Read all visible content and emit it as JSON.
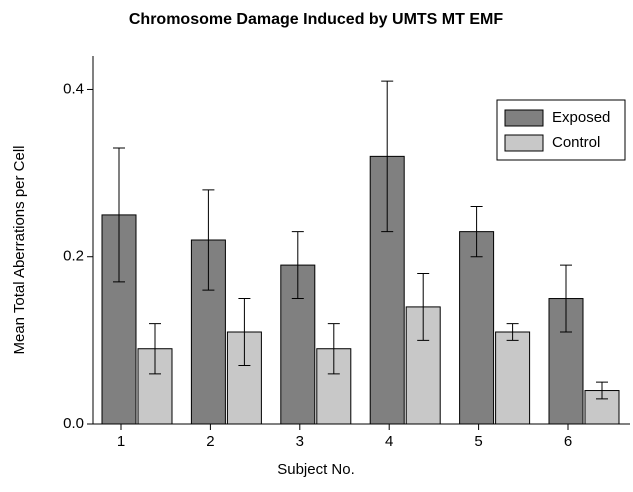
{
  "chart_data": {
    "type": "bar",
    "title": "Chromosome Damage Induced by UMTS MT EMF",
    "x_label": "Subject No.",
    "y_label": "Mean Total Aberrations per Cell",
    "categories": [
      "1",
      "2",
      "3",
      "4",
      "5",
      "6"
    ],
    "series": [
      {
        "name": "Exposed",
        "color": "#808080",
        "values": [
          0.25,
          0.22,
          0.19,
          0.32,
          0.23,
          0.15
        ],
        "errors": [
          0.08,
          0.06,
          0.04,
          0.09,
          0.03,
          0.04
        ]
      },
      {
        "name": "Control",
        "color": "#c8c8c8",
        "values": [
          0.09,
          0.11,
          0.09,
          0.14,
          0.11,
          0.04
        ],
        "errors": [
          0.03,
          0.04,
          0.03,
          0.04,
          0.01,
          0.01
        ]
      }
    ],
    "ylim": [
      0,
      0.44
    ],
    "yticks": [
      {
        "value": 0,
        "label": "0.0"
      },
      0.2,
      0.4
    ],
    "legend": "upper right"
  }
}
